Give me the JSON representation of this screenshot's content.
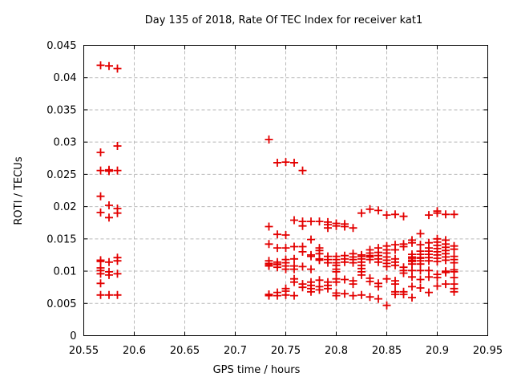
{
  "chart_data": {
    "type": "scatter",
    "title": "Day 135 of 2018, Rate Of TEC Index for receiver kat1",
    "xlabel": "GPS time / hours",
    "ylabel": "ROTI / TECUs",
    "xlim": [
      20.55,
      20.95
    ],
    "ylim": [
      0,
      0.045
    ],
    "grid": true,
    "legend": "none",
    "xticks": {
      "values": [
        20.55,
        20.6,
        20.65,
        20.7,
        20.75,
        20.8,
        20.85,
        20.9,
        20.95
      ],
      "labels": [
        "20.55",
        "20.6",
        "20.65",
        "20.7",
        "20.75",
        "20.8",
        "20.85",
        "20.9",
        "20.95"
      ]
    },
    "yticks": {
      "values": [
        0,
        0.005,
        0.01,
        0.015,
        0.02,
        0.025,
        0.03,
        0.035,
        0.04,
        0.045
      ],
      "labels": [
        "0",
        "0.005",
        "0.01",
        "0.015",
        "0.02",
        "0.025",
        "0.03",
        "0.035",
        "0.04",
        "0.045"
      ]
    },
    "marker": {
      "shape": "plus",
      "color": "#e30000",
      "size": 10
    },
    "colors": {
      "grid": "#b9b9b9",
      "axis": "#000000",
      "text": "#000000",
      "background": "#ffffff"
    },
    "groups": [
      {
        "x": 20.5667,
        "ys": [
          0.0419,
          0.0284,
          0.0256,
          0.0216,
          0.0191,
          0.0117,
          0.0115,
          0.0105,
          0.0101,
          0.0096,
          0.0081,
          0.0063
        ]
      },
      {
        "x": 20.575,
        "ys": [
          0.0418,
          0.0257,
          0.0255,
          0.0202,
          0.0183,
          0.0114,
          0.0099,
          0.0094,
          0.0063
        ]
      },
      {
        "x": 20.5833,
        "ys": [
          0.0414,
          0.0294,
          0.0256,
          0.0197,
          0.019,
          0.0121,
          0.0116,
          0.0096,
          0.0063
        ]
      },
      {
        "x": 20.7333,
        "ys": [
          0.0304,
          0.0169,
          0.0142,
          0.0116,
          0.0112,
          0.011,
          0.0108,
          0.0064,
          0.0063,
          0.0062
        ]
      },
      {
        "x": 20.7417,
        "ys": [
          0.0268,
          0.0157,
          0.0136,
          0.0114,
          0.0111,
          0.011,
          0.0106,
          0.0067,
          0.0062
        ]
      },
      {
        "x": 20.75,
        "ys": [
          0.0269,
          0.0156,
          0.0136,
          0.0118,
          0.0113,
          0.0108,
          0.0103,
          0.0073,
          0.0069,
          0.0063
        ]
      },
      {
        "x": 20.7583,
        "ys": [
          0.0268,
          0.0179,
          0.0138,
          0.0119,
          0.0108,
          0.0103,
          0.0088,
          0.0083,
          0.0062
        ]
      },
      {
        "x": 20.7667,
        "ys": [
          0.0256,
          0.0177,
          0.017,
          0.0138,
          0.013,
          0.0107,
          0.008,
          0.0075
        ]
      },
      {
        "x": 20.775,
        "ys": [
          0.0177,
          0.0149,
          0.0125,
          0.0123,
          0.0103,
          0.0083,
          0.0078,
          0.0073,
          0.0068
        ]
      },
      {
        "x": 20.7833,
        "ys": [
          0.0177,
          0.0136,
          0.0132,
          0.0127,
          0.0119,
          0.0117,
          0.0086,
          0.0076,
          0.0071
        ]
      },
      {
        "x": 20.7917,
        "ys": [
          0.0176,
          0.0172,
          0.0167,
          0.0123,
          0.0118,
          0.0113,
          0.0083,
          0.0078,
          0.0073
        ]
      },
      {
        "x": 20.8,
        "ys": [
          0.0174,
          0.017,
          0.0123,
          0.0118,
          0.0113,
          0.0109,
          0.0103,
          0.0099,
          0.0088,
          0.0083,
          0.0066,
          0.0062
        ]
      },
      {
        "x": 20.8083,
        "ys": [
          0.0173,
          0.0169,
          0.0124,
          0.0119,
          0.0114,
          0.0087,
          0.0065
        ]
      },
      {
        "x": 20.8167,
        "ys": [
          0.0167,
          0.0127,
          0.0122,
          0.0118,
          0.0113,
          0.0085,
          0.008,
          0.0062
        ]
      },
      {
        "x": 20.825,
        "ys": [
          0.019,
          0.0125,
          0.0123,
          0.0119,
          0.0114,
          0.0109,
          0.0104,
          0.0099,
          0.0094,
          0.0063
        ]
      },
      {
        "x": 20.8333,
        "ys": [
          0.0196,
          0.0133,
          0.0128,
          0.0124,
          0.0122,
          0.0118,
          0.0089,
          0.0084,
          0.006
        ]
      },
      {
        "x": 20.8417,
        "ys": [
          0.0194,
          0.0136,
          0.0129,
          0.0124,
          0.0119,
          0.0114,
          0.0081,
          0.0076,
          0.0057
        ]
      },
      {
        "x": 20.85,
        "ys": [
          0.0187,
          0.0139,
          0.0133,
          0.0128,
          0.0122,
          0.0117,
          0.0112,
          0.0107,
          0.0088,
          0.0047
        ]
      },
      {
        "x": 20.8583,
        "ys": [
          0.0188,
          0.0141,
          0.0133,
          0.0119,
          0.0114,
          0.0109,
          0.0085,
          0.008,
          0.0068,
          0.0064
        ]
      },
      {
        "x": 20.8667,
        "ys": [
          0.0185,
          0.0142,
          0.0138,
          0.0106,
          0.0101,
          0.0097,
          0.0068,
          0.0064
        ]
      },
      {
        "x": 20.875,
        "ys": [
          0.0148,
          0.0144,
          0.0126,
          0.0122,
          0.012,
          0.0117,
          0.0115,
          0.0111,
          0.0101,
          0.0091,
          0.0076,
          0.0059
        ]
      },
      {
        "x": 20.8833,
        "ys": [
          0.0158,
          0.0141,
          0.0131,
          0.0126,
          0.0121,
          0.012,
          0.0116,
          0.0111,
          0.0101,
          0.0087,
          0.0074
        ]
      },
      {
        "x": 20.8917,
        "ys": [
          0.0187,
          0.0144,
          0.0136,
          0.0131,
          0.0126,
          0.0121,
          0.0116,
          0.0101,
          0.0091,
          0.0067
        ]
      },
      {
        "x": 20.9,
        "ys": [
          0.0193,
          0.019,
          0.015,
          0.0145,
          0.014,
          0.0135,
          0.013,
          0.0125,
          0.012,
          0.0115,
          0.0095,
          0.009,
          0.0077
        ]
      },
      {
        "x": 20.9083,
        "ys": [
          0.0188,
          0.0148,
          0.0142,
          0.0137,
          0.0132,
          0.0127,
          0.0122,
          0.0117,
          0.01,
          0.0098,
          0.008
        ]
      },
      {
        "x": 20.9167,
        "ys": [
          0.0188,
          0.0139,
          0.0134,
          0.0123,
          0.0118,
          0.0113,
          0.0102,
          0.0099,
          0.009,
          0.008,
          0.0073,
          0.0068
        ]
      }
    ]
  }
}
